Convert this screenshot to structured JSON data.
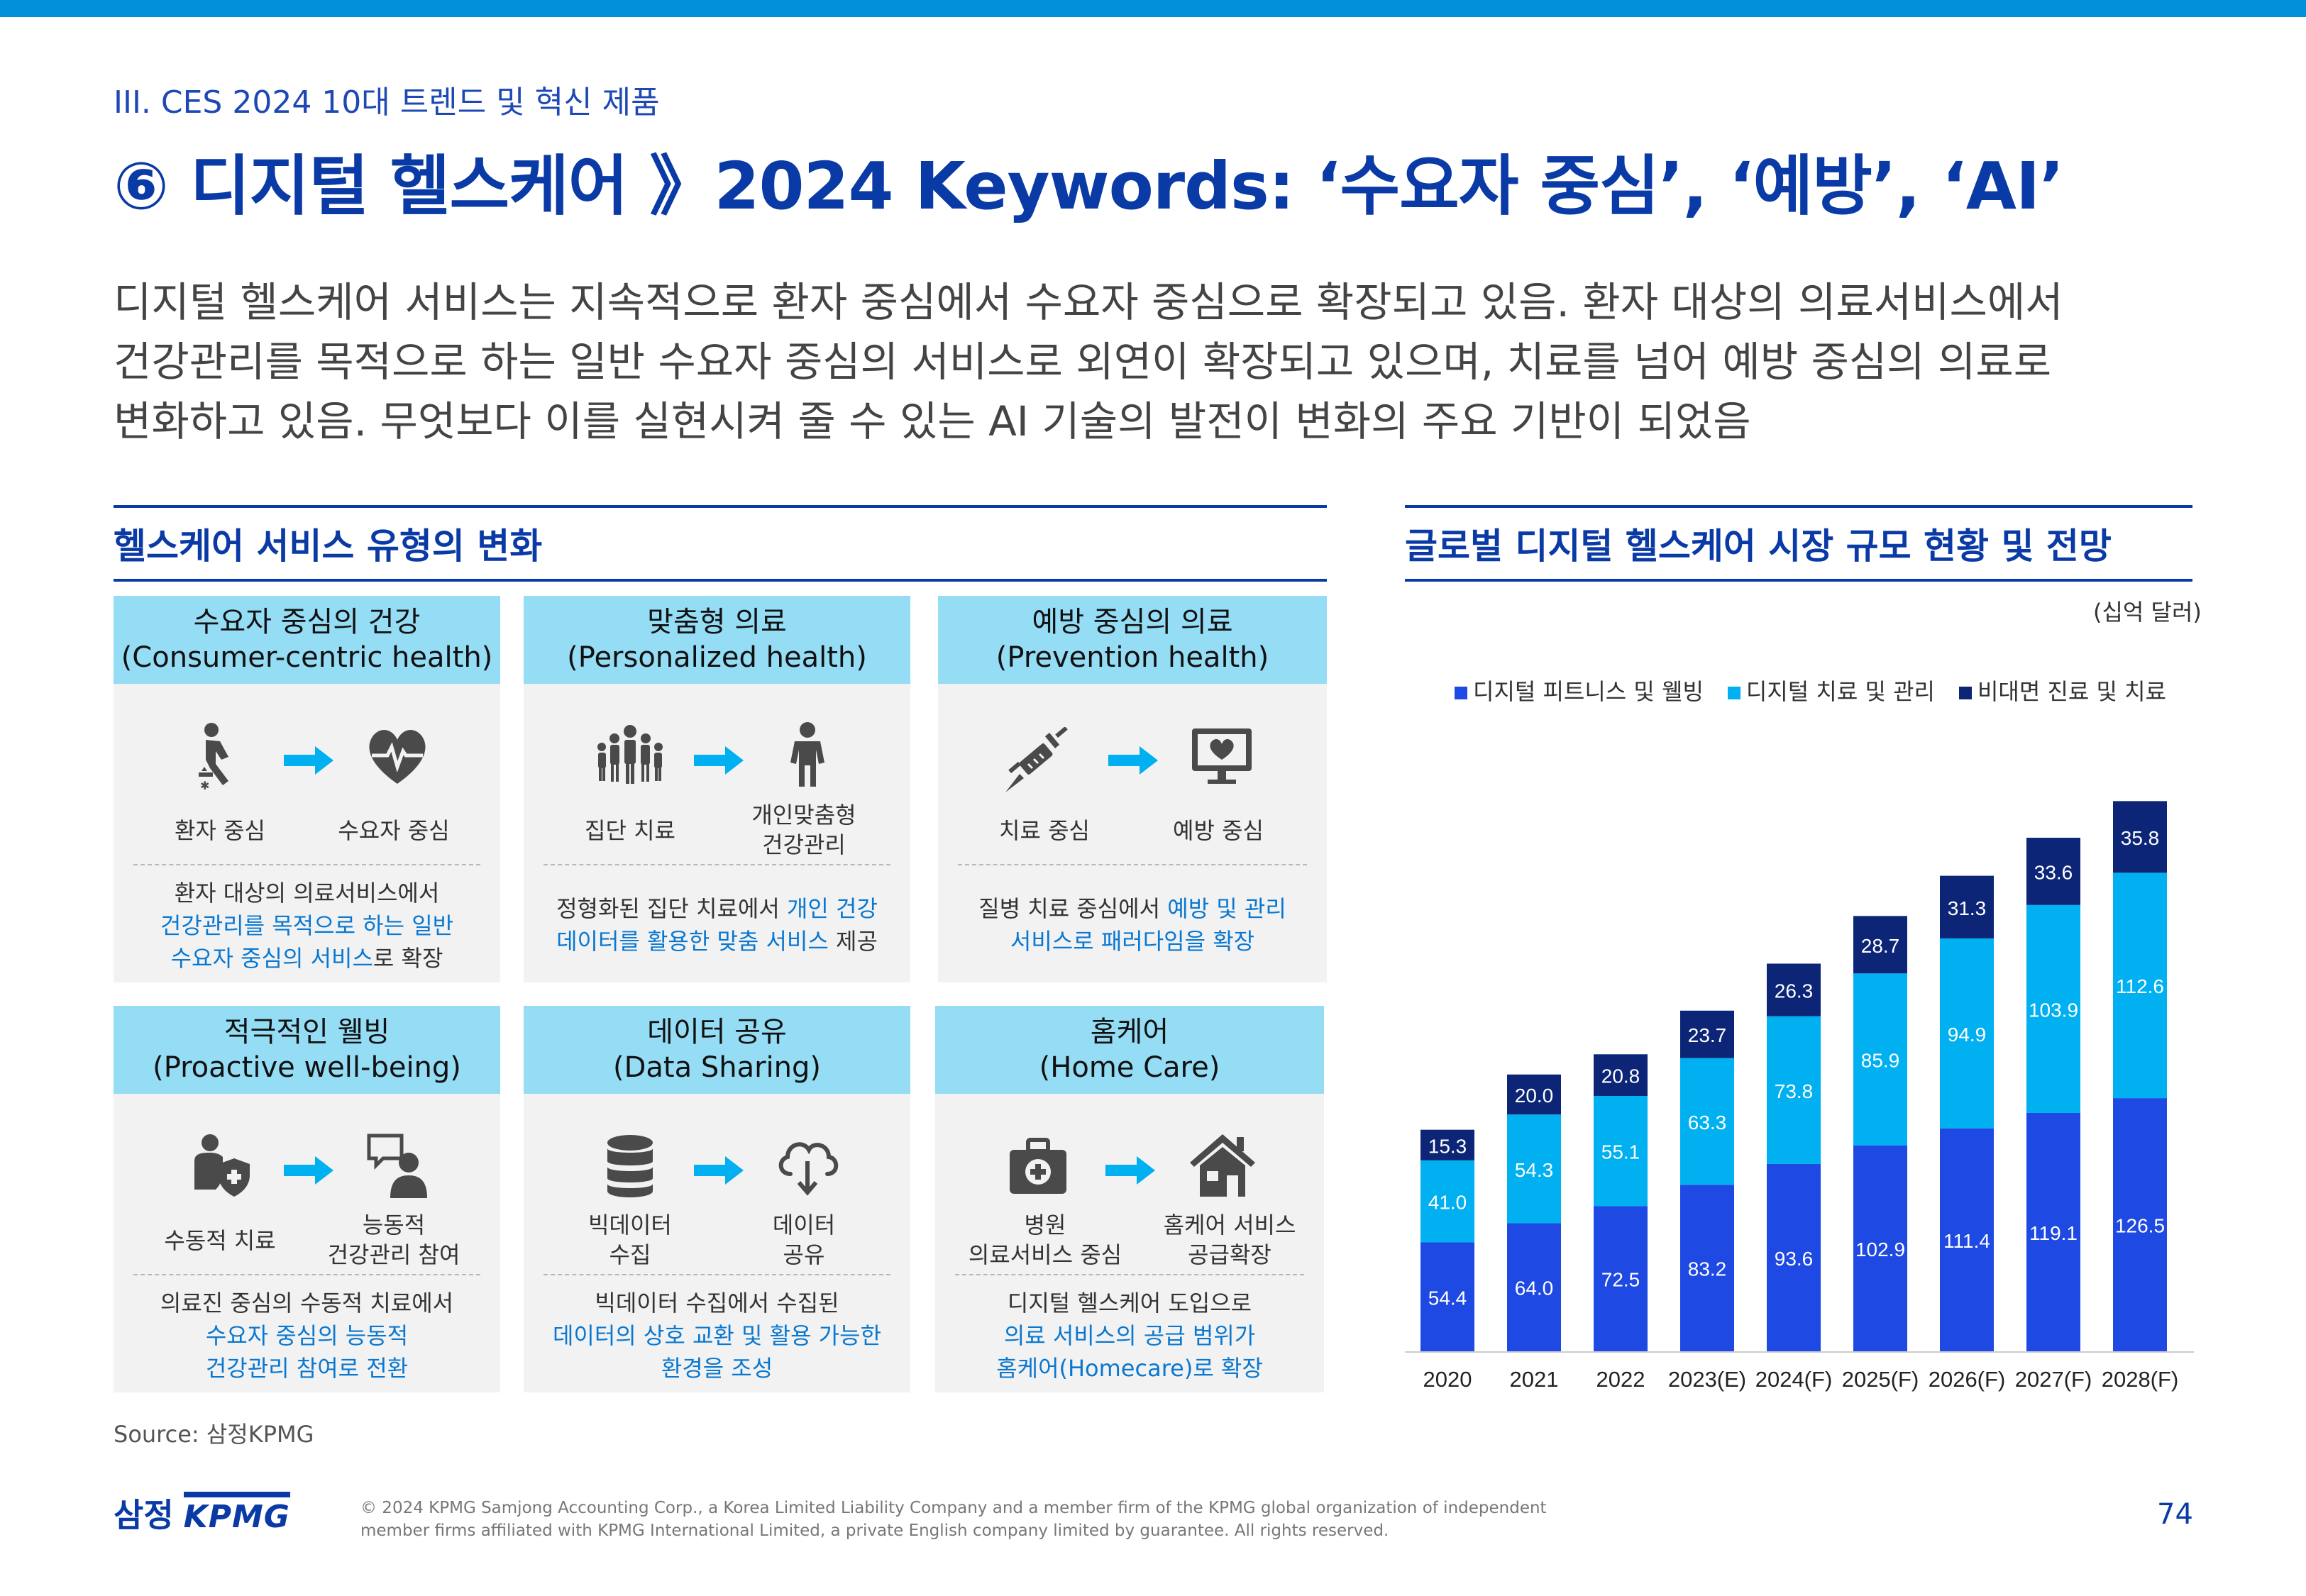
{
  "section": "III. CES 2024 10대 트렌드 및 혁신 제품",
  "title": "⑥ 디지털 헬스케어 》2024 Keywords: ‘수요자 중심’, ‘예방’, ‘AI’",
  "lead": [
    "디지털 헬스케어 서비스는 지속적으로 환자 중심에서 수요자 중심으로 확장되고 있음. 환자 대상의 의료서비스에서",
    "건강관리를 목적으로 하는 일반 수요자 중심의 서비스로 외연이 확장되고 있으며, 치료를 넘어 예방 중심의 의료로",
    "변화하고 있음. 무엇보다 이를 실현시켜 줄 수 있는 AI 기술의 발전이 변화의 주요 기반이 되었음"
  ],
  "left_heading": "헬스케어 서비스 유형의 변화",
  "right_heading": "글로벌 디지털 헬스케어 시장 규모 현황 및 전망",
  "cards": [
    {
      "title_ko": "수요자 중심의 건강",
      "title_en": "(Consumer-centric health)",
      "from": "환자 중심",
      "to": "수요자 중심",
      "d1": "환자 대상의 의료서비스에서",
      "d2a": "",
      "d2h": "건강관리를 목적으로 하는 일반",
      "d2b": "",
      "d3a": "",
      "d3h": "수요자 중심의 서비스",
      "d3b": "로 확장"
    },
    {
      "title_ko": "맞춤형 의료",
      "title_en": "(Personalized health)",
      "from": "집단 치료",
      "to1": "개인맞춤형",
      "to2": "건강관리",
      "d1a": "정형화된 집단 치료에서 ",
      "d1h": "개인 건강",
      "d2h": "데이터를 활용한 맞춤 서비스",
      "d2b": " 제공"
    },
    {
      "title_ko": "예방 중심의 의료",
      "title_en": "(Prevention health)",
      "from": "치료 중심",
      "to": "예방 중심",
      "d1a": "질병 치료 중심에서 ",
      "d1h": "예방 및 관리",
      "d2h": "서비스로 패러다임을 확장"
    },
    {
      "title_ko": "적극적인 웰빙",
      "title_en": "(Proactive well-being)",
      "from": "수동적 치료",
      "to1": "능동적",
      "to2": "건강관리 참여",
      "d1": "의료진 중심의 수동적 치료에서",
      "d2h": "수요자 중심의 능동적",
      "d3h": "건강관리 참여로 전환"
    },
    {
      "title_ko": "데이터 공유",
      "title_en": "(Data Sharing)",
      "from1": "빅데이터",
      "from2": "수집",
      "to1": "데이터",
      "to2": "공유",
      "d1": "빅데이터 수집에서 수집된",
      "d2h": "데이터의 상호 교환 및 활용 가능한",
      "d3h": "환경을 조성"
    },
    {
      "title_ko": "홈케어",
      "title_en": "(Home Care)",
      "from1": "병원",
      "from2": "의료서비스 중심",
      "to1": "홈케어 서비스",
      "to2": "공급확장",
      "d1": "디지털 헬스케어 도입으로",
      "d2h": "의료 서비스의 공급 범위가",
      "d3h": "홈케어(Homecare)로 확장"
    }
  ],
  "chart_data": {
    "type": "bar",
    "stacked": true,
    "title": "글로벌 디지털 헬스케어 시장 규모 현황 및 전망",
    "unit": "(십억 달러)",
    "categories": [
      "2020",
      "2021",
      "2022",
      "2023(E)",
      "2024(F)",
      "2025(F)",
      "2026(F)",
      "2027(F)",
      "2028(F)"
    ],
    "series": [
      {
        "name": "디지털 피트니스 및 웰빙",
        "color": "#1e49e2",
        "values": [
          54.4,
          64.0,
          72.5,
          83.2,
          93.6,
          102.9,
          111.4,
          119.1,
          126.5
        ]
      },
      {
        "name": "디지털 치료 및 관리",
        "color": "#00b0f0",
        "values": [
          41.0,
          54.3,
          55.1,
          63.3,
          73.8,
          85.9,
          94.9,
          103.9,
          112.6
        ]
      },
      {
        "name": "비대면 진료 및 치료",
        "color": "#0c2577",
        "values": [
          15.3,
          20.0,
          20.8,
          23.7,
          26.3,
          28.7,
          31.3,
          33.6,
          35.8
        ]
      }
    ],
    "ylim": [
      0,
      280
    ]
  },
  "source": "Source: 삼정KPMG",
  "footer": {
    "logo_ko": "삼정",
    "logo_en": "KPMG",
    "copyright1": "© 2024 KPMG Samjong Accounting Corp., a Korea Limited Liability Company and a member firm of the KPMG global organization of independent",
    "copyright2": "member firms affiliated with KPMG International Limited, a private English company limited by guarantee. All rights reserved.",
    "page": "74"
  }
}
